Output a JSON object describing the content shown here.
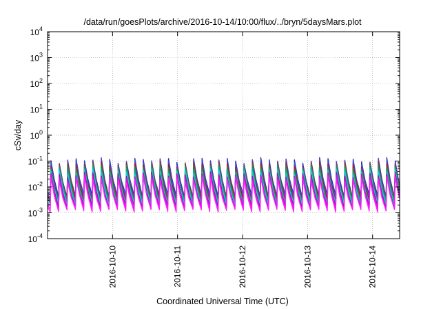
{
  "chart_data": {
    "type": "line",
    "title": "/data/run/goesPlots/archive/2016-10-14/10:00/flux/../bryn/5daysMars.plot",
    "xlabel": "Coordinated Universal Time (UTC)",
    "ylabel": "cSv/day",
    "xlim": [
      "2016-10-09 00:00",
      "2016-10-14 10:00"
    ],
    "ylim": [
      0.0001,
      10000
    ],
    "y_scale": "log",
    "grid": true,
    "legend": "none",
    "x_ticks": [
      "2016-10-10",
      "2016-10-11",
      "2016-10-12",
      "2016-10-13",
      "2016-10-14"
    ],
    "y_ticks": [
      {
        "base": "10",
        "exp": "-4",
        "value": 0.0001
      },
      {
        "base": "10",
        "exp": "-3",
        "value": 0.001
      },
      {
        "base": "10",
        "exp": "-2",
        "value": 0.01
      },
      {
        "base": "10",
        "exp": "-1",
        "value": 0.1
      },
      {
        "base": "10",
        "exp": "0",
        "value": 1
      },
      {
        "base": "10",
        "exp": "1",
        "value": 10
      },
      {
        "base": "10",
        "exp": "2",
        "value": 100
      },
      {
        "base": "10",
        "exp": "3",
        "value": 1000
      },
      {
        "base": "10",
        "exp": "4",
        "value": 10000
      }
    ],
    "cycle_hours": 3.1,
    "series": [
      {
        "color": "#3a1fb0",
        "peak": 0.11,
        "trough": 0.0045
      },
      {
        "color": "#1f5fff",
        "peak": 0.095,
        "trough": 0.0038
      },
      {
        "color": "#c01010",
        "peak": 0.08,
        "trough": 0.0033
      },
      {
        "color": "#2d8a2d",
        "peak": 0.065,
        "trough": 0.0028
      },
      {
        "color": "#00a8a8",
        "peak": 0.05,
        "trough": 0.0024
      },
      {
        "color": "#18d0d0",
        "peak": 0.04,
        "trough": 0.002
      },
      {
        "color": "#9a10b0",
        "peak": 0.03,
        "trough": 0.0017
      },
      {
        "color": "#e010e0",
        "peak": 0.025,
        "trough": 0.0014
      },
      {
        "color": "#ff20ff",
        "peak": 0.02,
        "trough": 0.0012
      }
    ]
  }
}
